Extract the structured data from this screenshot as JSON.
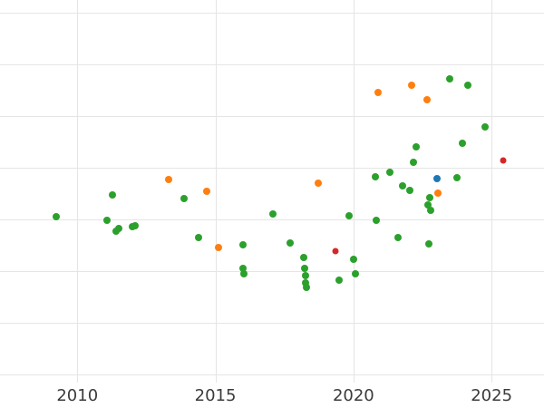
{
  "chart_data": {
    "type": "scatter",
    "title": "",
    "xlabel": "",
    "ylabel": "",
    "x_ticks": [
      2010,
      2015,
      2020,
      2025
    ],
    "x_tick_labels": [
      "2010",
      "2015",
      "2020",
      "2025"
    ],
    "xlim": [
      2007.2,
      2026.9
    ],
    "ylim": [
      -0.5,
      100
    ],
    "grid": {
      "show": true,
      "color": "#e5e5e5",
      "vertical": [
        2010,
        2015,
        2020,
        2025
      ],
      "horizontal": [
        96.7,
        83.1,
        69.5,
        56.0,
        42.4,
        28.8,
        15.2,
        1.7
      ]
    },
    "legend": "none",
    "series": [
      {
        "name": "green",
        "color": "#2ca02c",
        "size": 8,
        "points": [
          {
            "x": 2009.25,
            "y": 43.1
          },
          {
            "x": 2011.08,
            "y": 42.1
          },
          {
            "x": 2011.28,
            "y": 48.8
          },
          {
            "x": 2011.41,
            "y": 39.3
          },
          {
            "x": 2011.51,
            "y": 40.0
          },
          {
            "x": 2012.0,
            "y": 40.5
          },
          {
            "x": 2012.1,
            "y": 40.7
          },
          {
            "x": 2013.87,
            "y": 47.9
          },
          {
            "x": 2014.39,
            "y": 37.6
          },
          {
            "x": 2015.99,
            "y": 35.7
          },
          {
            "x": 2015.99,
            "y": 29.5
          },
          {
            "x": 2016.03,
            "y": 28.1
          },
          {
            "x": 2017.08,
            "y": 43.8
          },
          {
            "x": 2017.7,
            "y": 36.2
          },
          {
            "x": 2018.19,
            "y": 32.4
          },
          {
            "x": 2018.22,
            "y": 29.5
          },
          {
            "x": 2018.25,
            "y": 27.6
          },
          {
            "x": 2018.25,
            "y": 25.7
          },
          {
            "x": 2018.29,
            "y": 24.5
          },
          {
            "x": 2019.47,
            "y": 26.4
          },
          {
            "x": 2019.83,
            "y": 43.3
          },
          {
            "x": 2019.99,
            "y": 31.9
          },
          {
            "x": 2020.06,
            "y": 28.1
          },
          {
            "x": 2020.78,
            "y": 53.6
          },
          {
            "x": 2020.81,
            "y": 42.1
          },
          {
            "x": 2021.33,
            "y": 54.8
          },
          {
            "x": 2021.63,
            "y": 37.6
          },
          {
            "x": 2021.79,
            "y": 51.2
          },
          {
            "x": 2022.05,
            "y": 50.0
          },
          {
            "x": 2022.18,
            "y": 57.4
          },
          {
            "x": 2022.28,
            "y": 61.4
          },
          {
            "x": 2022.71,
            "y": 46.2
          },
          {
            "x": 2022.74,
            "y": 36.0
          },
          {
            "x": 2022.77,
            "y": 48.1
          },
          {
            "x": 2022.81,
            "y": 44.8
          },
          {
            "x": 2023.49,
            "y": 79.3
          },
          {
            "x": 2023.76,
            "y": 53.3
          },
          {
            "x": 2023.95,
            "y": 62.4
          },
          {
            "x": 2024.15,
            "y": 77.6
          },
          {
            "x": 2024.77,
            "y": 66.7
          }
        ]
      },
      {
        "name": "orange",
        "color": "#ff7f0e",
        "size": 8,
        "points": [
          {
            "x": 2013.31,
            "y": 52.9
          },
          {
            "x": 2014.68,
            "y": 49.8
          },
          {
            "x": 2015.11,
            "y": 35.0
          },
          {
            "x": 2018.71,
            "y": 51.9
          },
          {
            "x": 2020.88,
            "y": 75.7
          },
          {
            "x": 2022.12,
            "y": 77.6
          },
          {
            "x": 2022.68,
            "y": 73.8
          },
          {
            "x": 2023.07,
            "y": 49.3
          }
        ]
      },
      {
        "name": "red",
        "color": "#d62728",
        "size": 7,
        "points": [
          {
            "x": 2019.34,
            "y": 34.0
          },
          {
            "x": 2025.43,
            "y": 57.9
          }
        ]
      },
      {
        "name": "blue",
        "color": "#1f77b4",
        "size": 8,
        "points": [
          {
            "x": 2023.03,
            "y": 53.1
          }
        ]
      }
    ]
  }
}
